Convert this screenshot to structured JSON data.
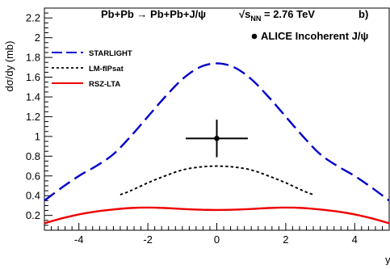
{
  "chart_data": {
    "type": "line",
    "title": "Pb+Pb → Pb+Pb+J/ψ",
    "energy_prefix": "√",
    "energy_label": "s",
    "energy_subscript": "NN",
    "energy_value": " = 2.76 TeV",
    "panel_label": "b)",
    "xlabel": "y",
    "ylabel": "dσ/dy (mb)",
    "xlim": [
      -5,
      5
    ],
    "ylim": [
      0.05,
      2.3
    ],
    "x_ticks": [
      -4,
      -2,
      0,
      2,
      4
    ],
    "y_ticks": [
      0.2,
      0.4,
      0.6,
      0.8,
      1,
      1.2,
      1.4,
      1.6,
      1.8,
      2,
      2.2
    ],
    "legend_position": "top-left",
    "series": [
      {
        "name": "STARLIGHT",
        "color": "#0000cc",
        "style": "long-dash",
        "x": [
          -5,
          -4.5,
          -4,
          -3.5,
          -3,
          -2.5,
          -2,
          -1.5,
          -1,
          -0.5,
          0,
          0.5,
          1,
          1.5,
          2,
          2.5,
          3,
          3.5,
          4,
          4.5,
          5
        ],
        "y": [
          0.35,
          0.48,
          0.6,
          0.7,
          0.82,
          1.0,
          1.2,
          1.4,
          1.58,
          1.7,
          1.74,
          1.7,
          1.58,
          1.4,
          1.2,
          1.0,
          0.82,
          0.7,
          0.6,
          0.48,
          0.35
        ]
      },
      {
        "name": "LM-fIPsat",
        "color": "#000000",
        "style": "dotted",
        "x": [
          -2.8,
          -2.5,
          -2,
          -1.5,
          -1,
          -0.5,
          0,
          0.5,
          1,
          1.5,
          2,
          2.5,
          2.8
        ],
        "y": [
          0.41,
          0.45,
          0.53,
          0.6,
          0.66,
          0.69,
          0.7,
          0.69,
          0.66,
          0.6,
          0.53,
          0.45,
          0.41
        ]
      },
      {
        "name": "RSZ-LTA",
        "color": "#ee0000",
        "style": "solid",
        "x": [
          -5,
          -4.5,
          -4,
          -3.5,
          -3,
          -2.5,
          -2,
          -1.5,
          -1,
          -0.5,
          0,
          0.5,
          1,
          1.5,
          2,
          2.5,
          3,
          3.5,
          4,
          4.5,
          5
        ],
        "y": [
          0.12,
          0.17,
          0.21,
          0.24,
          0.26,
          0.275,
          0.28,
          0.275,
          0.265,
          0.258,
          0.255,
          0.258,
          0.265,
          0.275,
          0.28,
          0.275,
          0.26,
          0.24,
          0.21,
          0.17,
          0.12
        ]
      }
    ],
    "data_point": {
      "name": "ALICE Incoherent J/ψ",
      "x": 0,
      "y": 0.98,
      "x_err": 0.9,
      "y_err": 0.19
    }
  }
}
